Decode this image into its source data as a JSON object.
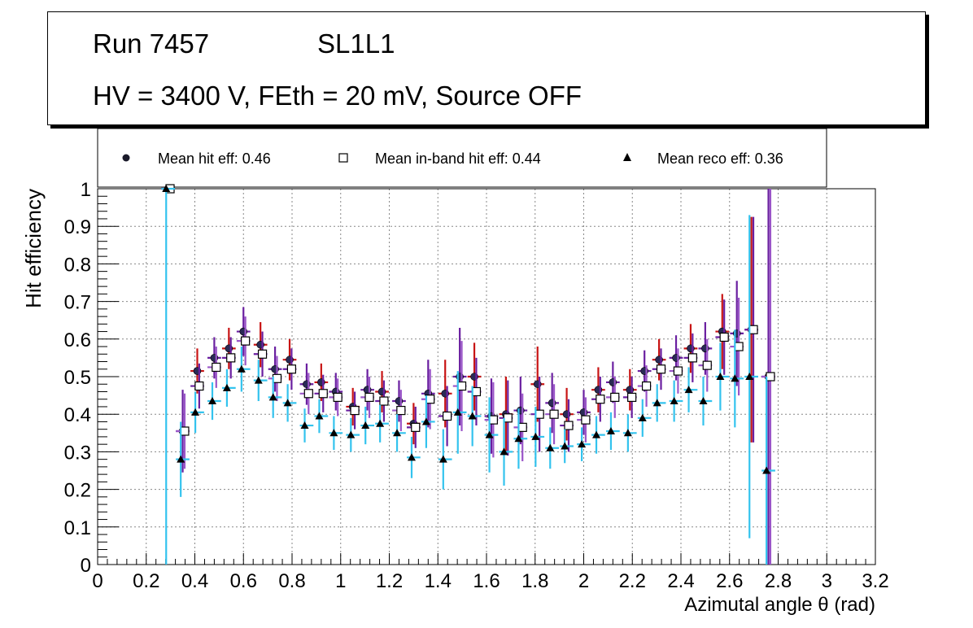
{
  "title": {
    "run": "Run 7457",
    "layer": "SL1L1",
    "conditions": "HV = 3400 V, FEth = 20 mV, Source OFF"
  },
  "chart_data": {
    "type": "scatter",
    "xlabel": "Azimutal angle θ (rad)",
    "ylabel": "Hit efficiency",
    "xlim": [
      0,
      3.2
    ],
    "ylim": [
      0,
      1
    ],
    "grid": true,
    "legend_position": "top",
    "x_ticks": [
      "0",
      "0.2",
      "0.4",
      "0.6",
      "0.8",
      "1",
      "1.2",
      "1.4",
      "1.6",
      "1.8",
      "2",
      "2.2",
      "2.4",
      "2.6",
      "2.8",
      "3",
      "3.2"
    ],
    "y_ticks": [
      "0",
      "0.1",
      "0.2",
      "0.3",
      "0.4",
      "0.5",
      "0.6",
      "0.7",
      "0.8",
      "0.9",
      "1"
    ],
    "legend": [
      "Mean hit  eff: 0.46",
      "Mean in-band hit eff: 0.44",
      "Mean reco eff: 0.36"
    ],
    "x": [
      0.29,
      0.35,
      0.41,
      0.48,
      0.54,
      0.6,
      0.67,
      0.73,
      0.79,
      0.86,
      0.92,
      0.98,
      1.05,
      1.11,
      1.17,
      1.24,
      1.3,
      1.36,
      1.43,
      1.49,
      1.55,
      1.62,
      1.68,
      1.74,
      1.81,
      1.87,
      1.93,
      2.0,
      2.06,
      2.12,
      2.19,
      2.25,
      2.31,
      2.38,
      2.44,
      2.5,
      2.57,
      2.63,
      2.69,
      2.76
    ],
    "series": [
      {
        "name": "Mean hit eff",
        "marker": "circle",
        "color": "#1a1a8c",
        "values": [
          1.0,
          0.355,
          0.515,
          0.55,
          0.575,
          0.62,
          0.585,
          0.52,
          0.545,
          0.48,
          0.485,
          0.46,
          0.42,
          0.465,
          0.46,
          0.435,
          0.375,
          0.455,
          0.455,
          0.5,
          0.5,
          0.395,
          0.4,
          0.41,
          0.48,
          0.43,
          0.4,
          0.405,
          0.465,
          0.485,
          0.465,
          0.515,
          0.545,
          0.55,
          0.575,
          0.575,
          0.62,
          0.615,
          0.625,
          0.5
        ],
        "errors": [
          0.01,
          0.11,
          0.06,
          0.055,
          0.055,
          0.065,
          0.06,
          0.06,
          0.055,
          0.055,
          0.05,
          0.05,
          0.05,
          0.055,
          0.055,
          0.055,
          0.055,
          0.09,
          0.09,
          0.13,
          0.09,
          0.1,
          0.1,
          0.09,
          0.1,
          0.08,
          0.07,
          0.06,
          0.06,
          0.055,
          0.055,
          0.055,
          0.055,
          0.06,
          0.065,
          0.07,
          0.1,
          0.14,
          0.3,
          0.5
        ]
      },
      {
        "name": "Mean in-band hit eff",
        "marker": "open-square",
        "color": "#7a3aa0",
        "values": [
          1.0,
          0.355,
          0.475,
          0.525,
          0.55,
          0.595,
          0.56,
          0.495,
          0.52,
          0.455,
          0.455,
          0.445,
          0.41,
          0.445,
          0.435,
          0.41,
          0.365,
          0.44,
          0.395,
          0.475,
          0.46,
          0.385,
          0.39,
          0.365,
          0.4,
          0.4,
          0.37,
          0.385,
          0.44,
          0.445,
          0.445,
          0.475,
          0.52,
          0.515,
          0.55,
          0.53,
          0.605,
          0.58,
          0.625,
          0.5
        ],
        "errors": [
          0.01,
          0.1,
          0.06,
          0.055,
          0.055,
          0.065,
          0.06,
          0.06,
          0.055,
          0.055,
          0.05,
          0.05,
          0.05,
          0.055,
          0.055,
          0.055,
          0.055,
          0.08,
          0.08,
          0.12,
          0.09,
          0.1,
          0.1,
          0.09,
          0.1,
          0.08,
          0.07,
          0.06,
          0.06,
          0.055,
          0.055,
          0.055,
          0.055,
          0.06,
          0.065,
          0.07,
          0.1,
          0.13,
          0.3,
          0.5
        ]
      },
      {
        "name": "Mean reco eff",
        "marker": "triangle",
        "color": "#33c3ee",
        "values": [
          1.0,
          0.28,
          0.405,
          0.435,
          0.47,
          0.52,
          0.49,
          0.445,
          0.43,
          0.37,
          0.395,
          0.35,
          0.345,
          0.37,
          0.375,
          0.35,
          0.285,
          0.38,
          0.28,
          0.405,
          0.395,
          0.345,
          0.3,
          0.335,
          0.34,
          0.31,
          0.315,
          0.32,
          0.345,
          0.355,
          0.35,
          0.39,
          0.43,
          0.435,
          0.465,
          0.435,
          0.5,
          0.495,
          0.5,
          0.25
        ],
        "errors": [
          1.0,
          0.1,
          0.055,
          0.05,
          0.05,
          0.06,
          0.055,
          0.055,
          0.05,
          0.045,
          0.045,
          0.045,
          0.045,
          0.05,
          0.05,
          0.05,
          0.055,
          0.07,
          0.08,
          0.11,
          0.08,
          0.1,
          0.09,
          0.08,
          0.08,
          0.055,
          0.045,
          0.045,
          0.05,
          0.05,
          0.05,
          0.05,
          0.05,
          0.055,
          0.06,
          0.065,
          0.09,
          0.13,
          0.43,
          0.25
        ]
      }
    ]
  }
}
